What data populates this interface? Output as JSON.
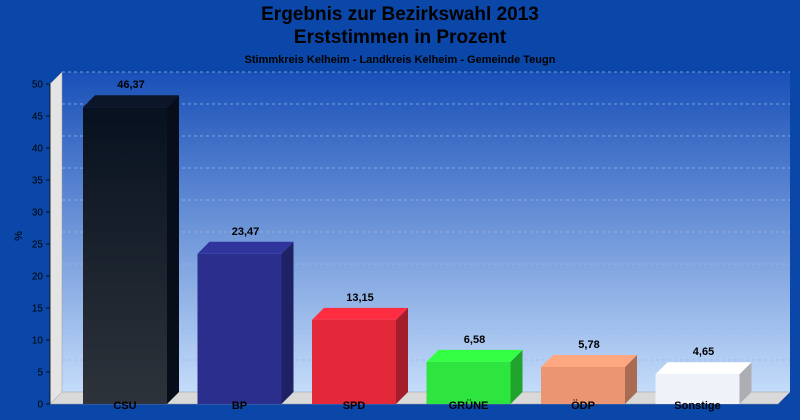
{
  "chart_data": {
    "type": "bar",
    "title": "Ergebnis zur Bezirkswahl 2013",
    "subtitle": "Erststimmen in Prozent",
    "subsubtitle": "Stimmkreis Kelheim - Landkreis Kelheim - Gemeinde Teugn",
    "ylabel": "%",
    "xlabel": "",
    "categories": [
      "CSU",
      "BP",
      "SPD",
      "GRÜNE",
      "ÖDP",
      "Sonstige"
    ],
    "values": [
      46.37,
      23.47,
      13.15,
      6.58,
      5.78,
      4.65
    ],
    "value_labels": [
      "46,37",
      "23,47",
      "13,15",
      "6,58",
      "5,78",
      "4,65"
    ],
    "colors": [
      "#0a1424",
      "#2b2e8c",
      "#e3283a",
      "#2ee43e",
      "#eb9572",
      "#f0f2fa"
    ],
    "ylim": [
      0,
      50
    ],
    "yticks": [
      0,
      5,
      10,
      15,
      20,
      25,
      30,
      35,
      40,
      45,
      50
    ],
    "grid": true,
    "legend": "none"
  }
}
